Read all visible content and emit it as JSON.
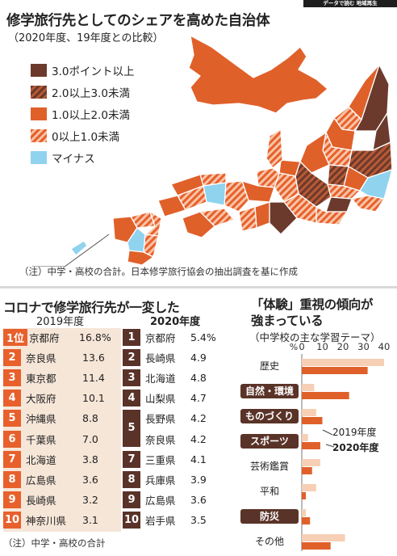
{
  "banner": "データで読む 地域再生",
  "map": {
    "title": "修学旅行先としてのシェアを高めた自治体",
    "subtitle": "（2020年度、19年度との比較）",
    "legend": [
      {
        "label": "3.0ポイント以上",
        "color": "#6b3a2c",
        "pattern": "solid"
      },
      {
        "label": "2.0以上3.0未満",
        "color": "#8b4a33",
        "pattern": "hatch"
      },
      {
        "label": "1.0以上2.0未満",
        "color": "#e0602a",
        "pattern": "solid"
      },
      {
        "label": "0以上1.0未満",
        "color": "#f08a5a",
        "pattern": "hatch"
      },
      {
        "label": "マイナス",
        "color": "#8fd3ef",
        "pattern": "solid"
      }
    ],
    "note": "（注）中学・高校の合計。日本修学旅行協会の抽出調査を基に作成"
  },
  "ranking": {
    "title": "コロナで修学旅行先が一変した",
    "year_2019": "2019年度",
    "year_2020": "2020年度",
    "rows_2019": [
      {
        "rank": "1位",
        "pref": "京都府",
        "value": "16.8%"
      },
      {
        "rank": "2",
        "pref": "奈良県",
        "value": "13.6"
      },
      {
        "rank": "3",
        "pref": "東京都",
        "value": "11.4"
      },
      {
        "rank": "4",
        "pref": "大阪府",
        "value": "10.1"
      },
      {
        "rank": "5",
        "pref": "沖縄県",
        "value": "8.8"
      },
      {
        "rank": "6",
        "pref": "千葉県",
        "value": "7.0"
      },
      {
        "rank": "7",
        "pref": "北海道",
        "value": "3.8"
      },
      {
        "rank": "8",
        "pref": "広島県",
        "value": "3.6"
      },
      {
        "rank": "9",
        "pref": "長崎県",
        "value": "3.2"
      },
      {
        "rank": "10",
        "pref": "神奈川県",
        "value": "3.1"
      }
    ],
    "rows_2020": [
      {
        "rank": "1",
        "pref": "京都府",
        "value": "5.4%"
      },
      {
        "rank": "2",
        "pref": "長崎県",
        "value": "4.9"
      },
      {
        "rank": "3",
        "pref": "北海道",
        "value": "4.8"
      },
      {
        "rank": "4",
        "pref": "山梨県",
        "value": "4.7"
      },
      {
        "rank": "5",
        "pref": "長野県",
        "value": "4.2"
      },
      {
        "rank": "",
        "pref": "奈良県",
        "value": "4.2"
      },
      {
        "rank": "7",
        "pref": "三重県",
        "value": "4.1"
      },
      {
        "rank": "8",
        "pref": "兵庫県",
        "value": "3.9"
      },
      {
        "rank": "9",
        "pref": "広島県",
        "value": "3.6"
      },
      {
        "rank": "10",
        "pref": "岩手県",
        "value": "3.5"
      }
    ],
    "note": "（注）中学・高校の合計"
  },
  "activity": {
    "title_line1": "「体験」重視の傾向が",
    "title_line2": "強まっている",
    "subtitle": "（中学校の主な学習テーマ）"
  },
  "colors": {
    "rank_2019": "#e8602c",
    "rank_2020": "#5a3328",
    "bar_2019": "#f6cfb5",
    "bar_2020": "#e0602a",
    "highlight_label": "#5a3328"
  },
  "chart_data": {
    "type": "bar",
    "orientation": "horizontal",
    "categories": [
      "歴史",
      "自然・環境",
      "ものづくり",
      "スポーツ",
      "芸術鑑賞",
      "平和",
      "防災",
      "その他"
    ],
    "highlighted_categories": [
      "自然・環境",
      "ものづくり",
      "スポーツ",
      "防災"
    ],
    "series": [
      {
        "name": "2019年度",
        "values": [
          40,
          6,
          7,
          3,
          9,
          7,
          2,
          21
        ]
      },
      {
        "name": "2020年度",
        "values": [
          32,
          23,
          10,
          9,
          5,
          2,
          4,
          14
        ]
      }
    ],
    "xaxis_unit": "%",
    "xticks": [
      "0",
      "10",
      "20",
      "30",
      "40"
    ],
    "xlim": [
      0,
      40
    ]
  }
}
